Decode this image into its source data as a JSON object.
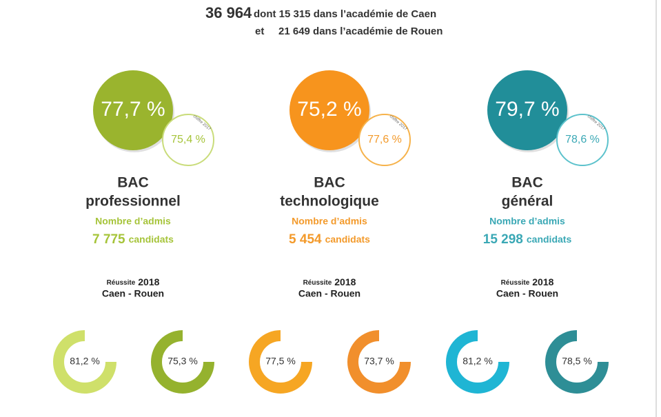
{
  "header": {
    "total": "36 964",
    "caen": "dont 15 315 dans l’académie de Caen",
    "connector": "et",
    "rouen": "21 649 dans l’académie de Rouen"
  },
  "columns": [
    {
      "rate": "77,7 %",
      "previous_rate": "75,4 %",
      "previous_label": "chiffre 2017",
      "title_line1": "BAC",
      "title_line2": "professionnel",
      "admitted_label": "Nombre d’admis",
      "admitted_count": "7 775",
      "admitted_unit": "candidats",
      "success_label": "Réussite",
      "success_year": "2018",
      "academies": "Caen - Rouen",
      "donuts": [
        "81,2 %",
        "75,3 %"
      ]
    },
    {
      "rate": "75,2 %",
      "previous_rate": "77,6 %",
      "previous_label": "chiffre 2017",
      "title_line1": "BAC",
      "title_line2": "technologique",
      "admitted_label": "Nombre d’admis",
      "admitted_count": "5 454",
      "admitted_unit": "candidats",
      "success_label": "Réussite",
      "success_year": "2018",
      "academies": "Caen - Rouen",
      "donuts": [
        "77,5 %",
        "73,7 %"
      ]
    },
    {
      "rate": "79,7 %",
      "previous_rate": "78,6 %",
      "previous_label": "chiffre 2017",
      "title_line1": "BAC",
      "title_line2": "général",
      "admitted_label": "Nombre d’admis",
      "admitted_count": "15 298",
      "admitted_unit": "candidats",
      "success_label": "Réussite",
      "success_year": "2018",
      "academies": "Caen - Rouen",
      "donuts": [
        "81,2 %",
        "78,5 %"
      ]
    }
  ]
}
